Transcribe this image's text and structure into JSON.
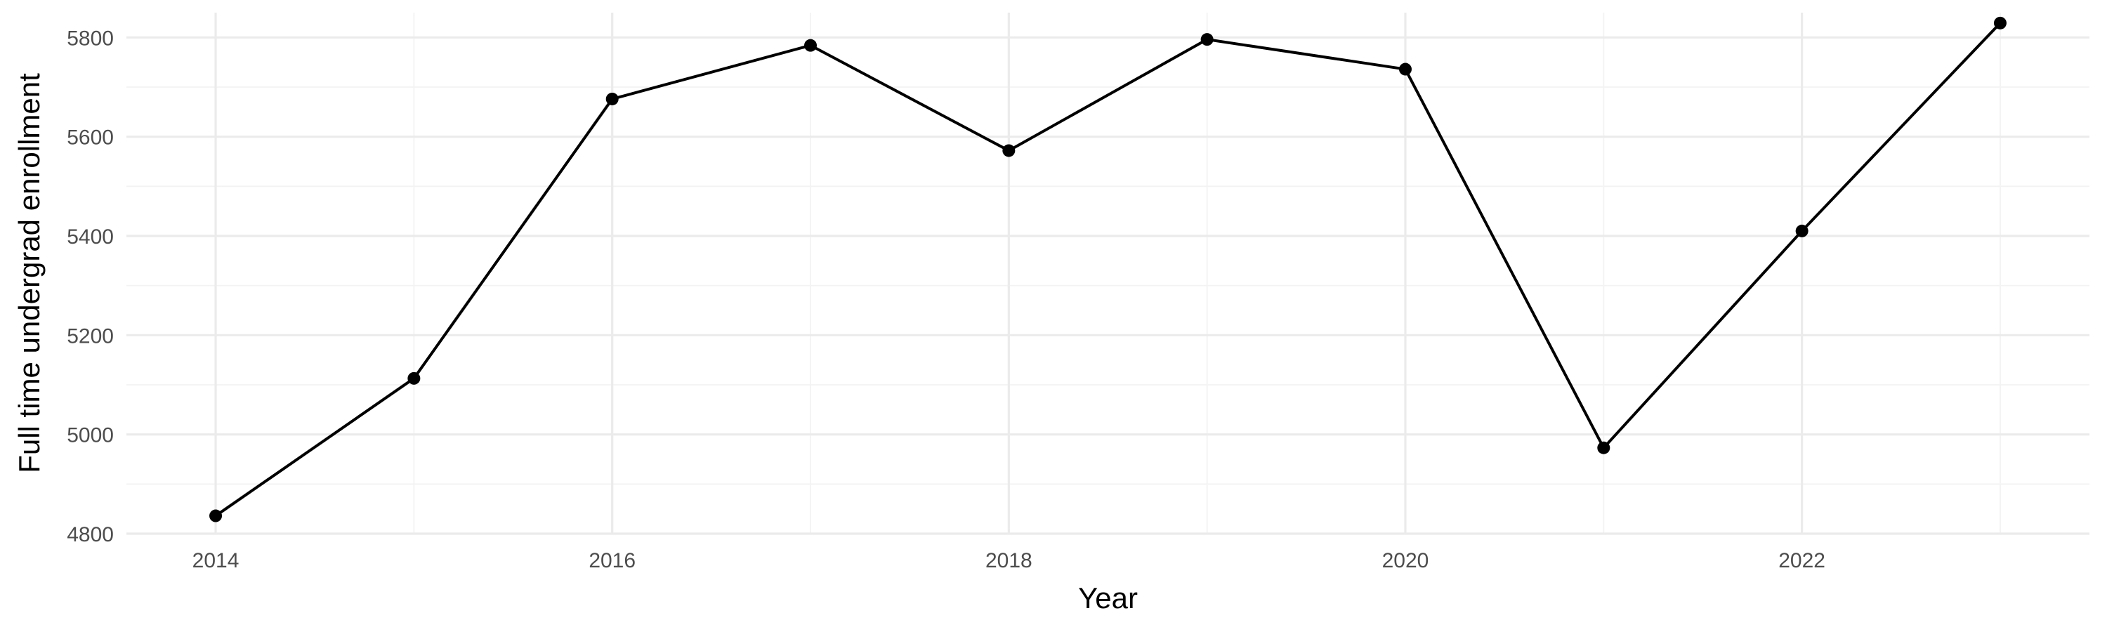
{
  "chart_data": {
    "type": "line",
    "title": "",
    "xlabel": "Year",
    "ylabel": "Full time undergrad enrollment",
    "x": [
      2014,
      2015,
      2016,
      2017,
      2018,
      2019,
      2020,
      2021,
      2022,
      2023
    ],
    "series": [
      {
        "values": [
          4836,
          5113,
          5676,
          5784,
          5572,
          5796,
          5736,
          4973,
          5410,
          5829
        ]
      }
    ],
    "xlim": [
      2013.55,
      2023.45
    ],
    "ylim": [
      4800,
      5850
    ],
    "x_ticks": [
      "2014",
      "2016",
      "2018",
      "2020",
      "2022"
    ],
    "y_ticks": [
      "4800",
      "5000",
      "5200",
      "5400",
      "5600",
      "5800"
    ],
    "grid": true,
    "legend": "none",
    "colors": {
      "line": "#000000",
      "points": "#000000",
      "grid": "#ebebeb",
      "tick_text": "#4d4d4d"
    }
  }
}
